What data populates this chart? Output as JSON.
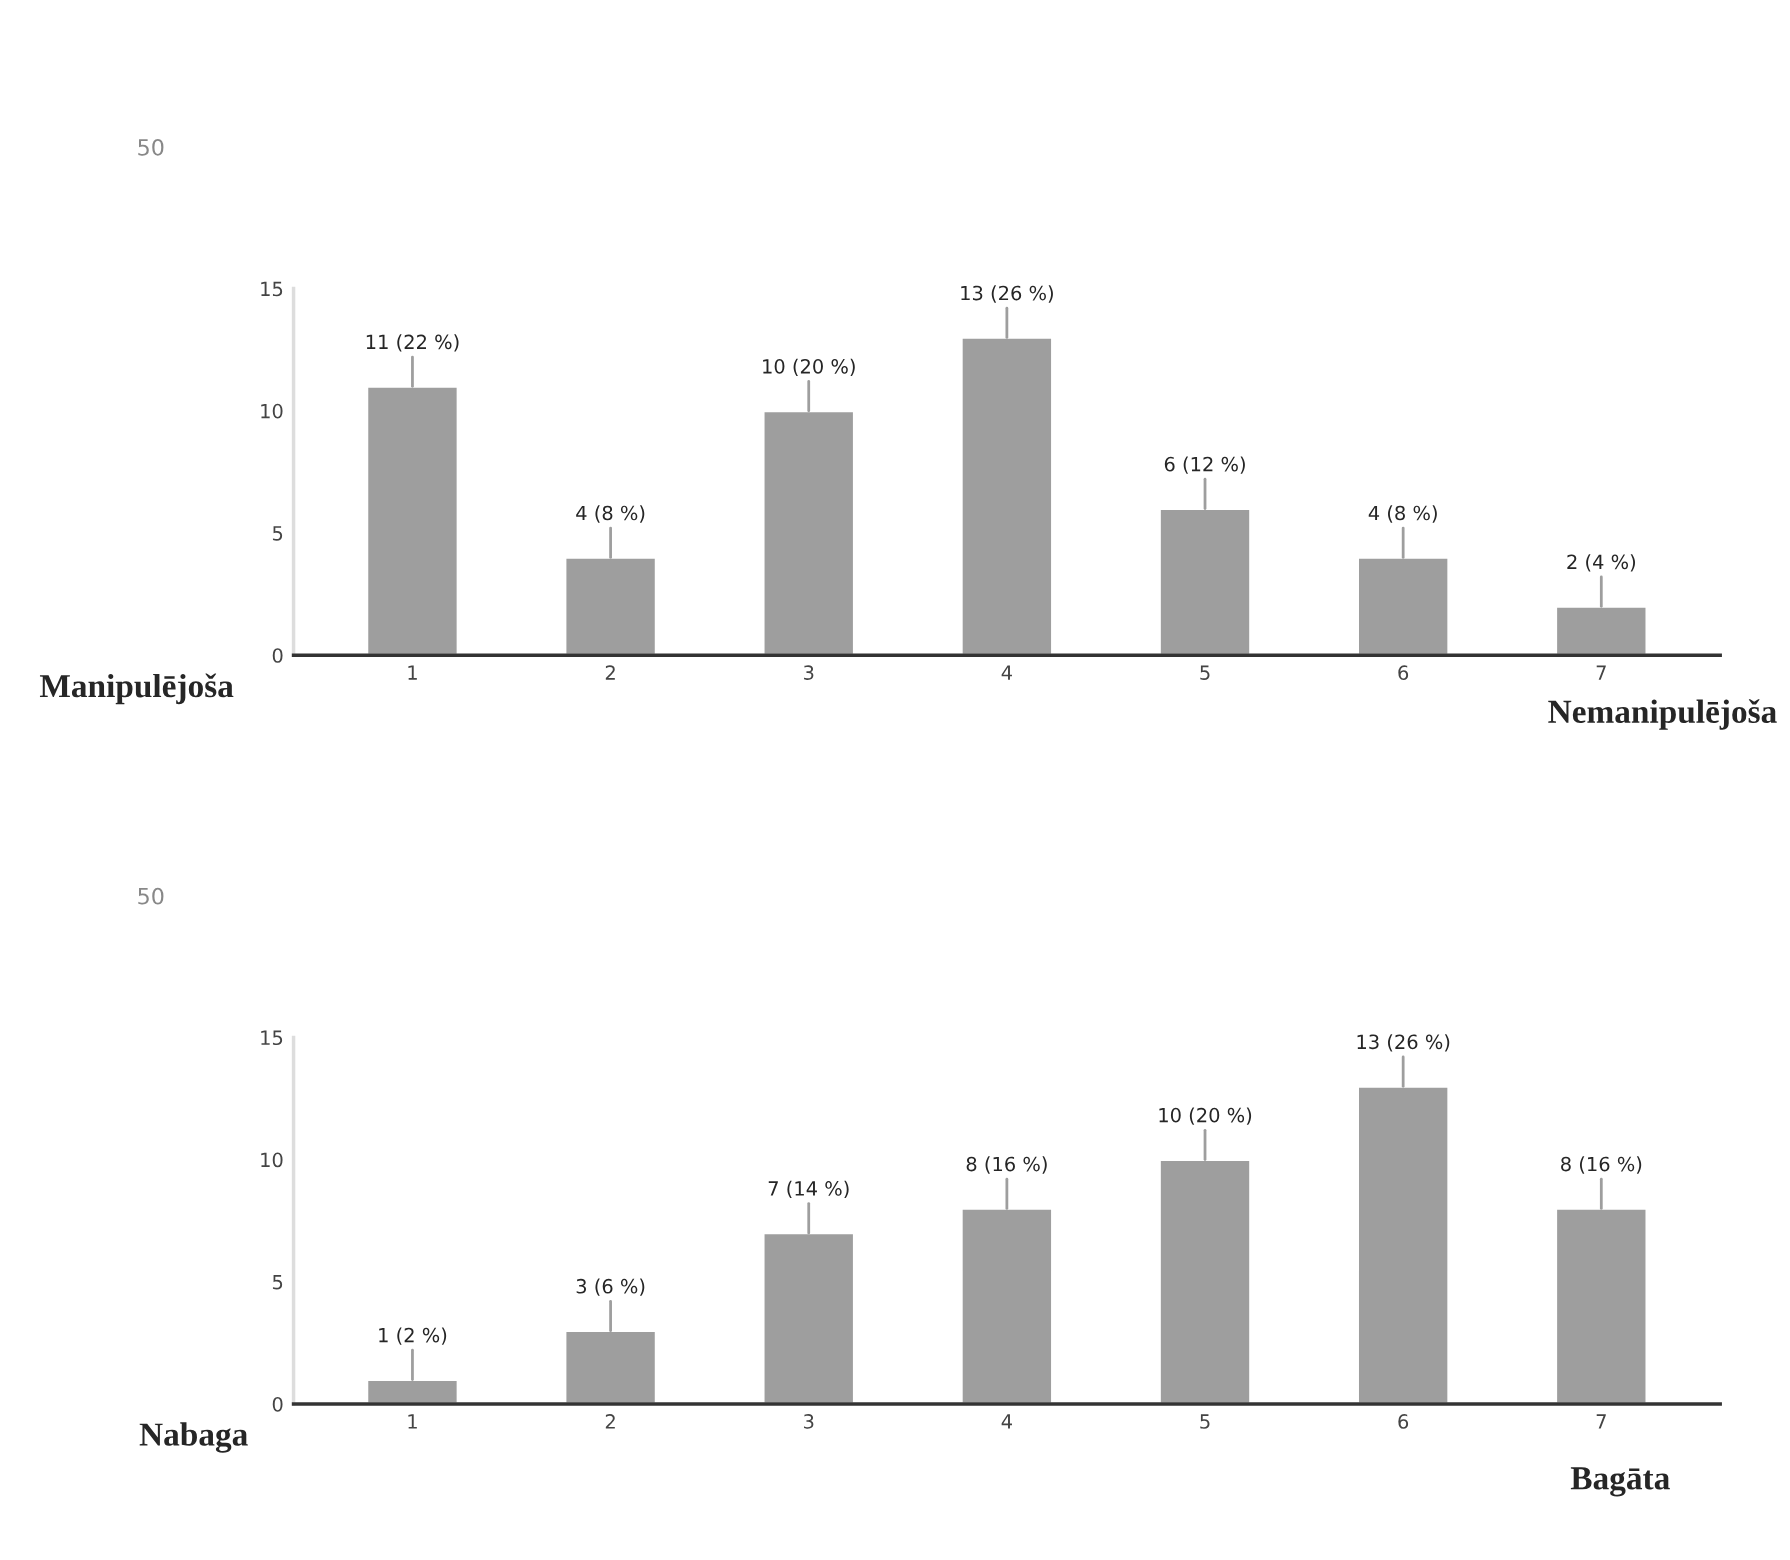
{
  "chart_data": [
    {
      "type": "bar",
      "categories": [
        "1",
        "2",
        "3",
        "4",
        "5",
        "6",
        "7"
      ],
      "values": [
        11,
        4,
        10,
        13,
        6,
        4,
        2
      ],
      "color": "#9e9e9e",
      "value_labels": [
        "11 (22 %)",
        "4 (8 %)",
        "10 (20 %)",
        "13 (26 %)",
        "6 (12 %)",
        "4 (8 %)",
        "2 (4 %)"
      ],
      "ylim": [
        0,
        15
      ],
      "yticks": [
        0,
        5,
        10,
        15
      ],
      "annotations": [
        "50",
        "Manipulējoša",
        "Nemanipulējoša"
      ]
    },
    {
      "type": "bar",
      "categories": [
        "1",
        "2",
        "3",
        "4",
        "5",
        "6",
        "7"
      ],
      "values": [
        1,
        3,
        7,
        8,
        10,
        13,
        8
      ],
      "color": "#9e9e9e",
      "value_labels": [
        "1 (2 %)",
        "3 (6 %)",
        "7 (14 %)",
        "8 (16 %)",
        "10 (20 %)",
        "13 (26 %)",
        "8 (16 %)"
      ],
      "ylim": [
        0,
        15
      ],
      "yticks": [
        0,
        5,
        10,
        15
      ],
      "annotations": [
        "50",
        "Nabaga",
        "Bagāta"
      ]
    }
  ]
}
